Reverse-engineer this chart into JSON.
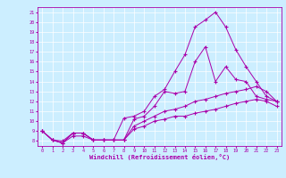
{
  "xlabel": "Windchill (Refroidissement éolien,°C)",
  "bg_color": "#cceeff",
  "line_color": "#aa00aa",
  "xmin": 0,
  "xmax": 23,
  "ymin": 8,
  "ymax": 21,
  "series": [
    {
      "x": [
        0,
        1,
        2,
        3,
        4,
        5,
        6,
        7,
        8,
        9,
        10,
        11,
        12,
        13,
        14,
        15,
        16,
        17,
        18,
        19,
        20,
        21,
        22,
        23
      ],
      "y": [
        9.0,
        8.1,
        7.8,
        8.8,
        8.8,
        8.1,
        8.1,
        8.1,
        10.3,
        10.5,
        11.0,
        12.5,
        13.2,
        15.0,
        16.7,
        19.5,
        20.2,
        21.0,
        19.5,
        17.2,
        15.5,
        14.0,
        12.5,
        12.0
      ]
    },
    {
      "x": [
        0,
        1,
        2,
        3,
        4,
        5,
        6,
        7,
        8,
        9,
        10,
        11,
        12,
        13,
        14,
        15,
        16,
        17,
        18,
        19,
        20,
        21,
        22,
        23
      ],
      "y": [
        9.0,
        8.1,
        7.8,
        8.8,
        8.8,
        8.1,
        8.1,
        8.1,
        8.1,
        10.2,
        10.5,
        11.5,
        13.0,
        12.8,
        13.0,
        16.0,
        17.5,
        14.0,
        15.5,
        14.2,
        14.0,
        12.5,
        12.2,
        12.0
      ]
    },
    {
      "x": [
        0,
        1,
        2,
        3,
        4,
        5,
        6,
        7,
        8,
        9,
        10,
        11,
        12,
        13,
        14,
        15,
        16,
        17,
        18,
        19,
        20,
        21,
        22,
        23
      ],
      "y": [
        9.0,
        8.1,
        7.8,
        8.5,
        8.5,
        8.1,
        8.1,
        8.1,
        8.1,
        9.5,
        10.0,
        10.5,
        11.0,
        11.2,
        11.5,
        12.0,
        12.2,
        12.5,
        12.8,
        13.0,
        13.2,
        13.5,
        13.0,
        12.0
      ]
    },
    {
      "x": [
        0,
        1,
        2,
        3,
        4,
        5,
        6,
        7,
        8,
        9,
        10,
        11,
        12,
        13,
        14,
        15,
        16,
        17,
        18,
        19,
        20,
        21,
        22,
        23
      ],
      "y": [
        9.0,
        8.1,
        8.0,
        8.8,
        8.8,
        8.1,
        8.1,
        8.1,
        8.1,
        9.2,
        9.5,
        10.0,
        10.2,
        10.5,
        10.5,
        10.8,
        11.0,
        11.2,
        11.5,
        11.8,
        12.0,
        12.2,
        12.0,
        11.5
      ]
    }
  ]
}
